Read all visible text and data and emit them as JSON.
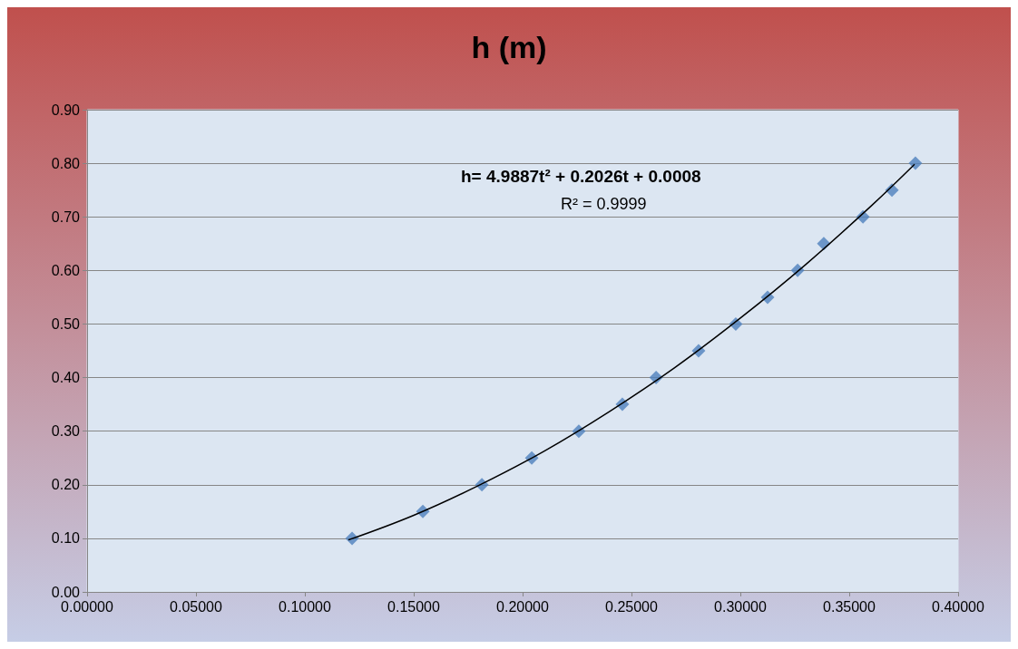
{
  "chart_data": {
    "type": "scatter",
    "title": "h (m)",
    "series": [
      {
        "type": "scatter",
        "color": "#4f81bd",
        "marker": "diamond",
        "x": [
          0.1217,
          0.1542,
          0.1813,
          0.2042,
          0.2258,
          0.2458,
          0.2613,
          0.2808,
          0.2979,
          0.3125,
          0.3263,
          0.3383,
          0.3563,
          0.3696,
          0.3804
        ],
        "values": [
          0.1,
          0.15,
          0.2,
          0.25,
          0.3,
          0.35,
          0.4,
          0.45,
          0.5,
          0.55,
          0.6,
          0.65,
          0.7,
          0.75,
          0.8
        ]
      },
      {
        "type": "line",
        "color": "#000000",
        "marker": "none",
        "x": [
          0.12,
          0.15,
          0.18,
          0.21,
          0.24,
          0.27,
          0.3,
          0.33,
          0.36,
          0.38
        ],
        "values": [
          0.097,
          0.143,
          0.199,
          0.263,
          0.337,
          0.419,
          0.511,
          0.611,
          0.72,
          0.798
        ]
      }
    ],
    "annotations": [
      "h= 4.9887t² + 0.2026t + 0.0008",
      "R² = 0.9999"
    ],
    "xlim": [
      0,
      0.4
    ],
    "xticks": [
      {
        "value": 0,
        "label": "0.00000"
      },
      {
        "value": 0.05,
        "label": "0.05000"
      },
      {
        "value": 0.1,
        "label": "0.10000"
      },
      {
        "value": 0.15,
        "label": "0.15000"
      },
      {
        "value": 0.2,
        "label": "0.20000"
      },
      {
        "value": 0.25,
        "label": "0.25000"
      },
      {
        "value": 0.3,
        "label": "0.30000"
      },
      {
        "value": 0.35,
        "label": "0.35000"
      },
      {
        "value": 0.4,
        "label": "0.40000"
      }
    ],
    "ylim": [
      0,
      0.9
    ],
    "yticks": [
      {
        "value": 0,
        "label": "0.00"
      },
      {
        "value": 0.1,
        "label": "0.10"
      },
      {
        "value": 0.2,
        "label": "0.20"
      },
      {
        "value": 0.3,
        "label": "0.30"
      },
      {
        "value": 0.4,
        "label": "0.40"
      },
      {
        "value": 0.5,
        "label": "0.50"
      },
      {
        "value": 0.6,
        "label": "0.60"
      },
      {
        "value": 0.7,
        "label": "0.70"
      },
      {
        "value": 0.8,
        "label": "0.80"
      },
      {
        "value": 0.9,
        "label": "0.90"
      }
    ],
    "grid": "y"
  }
}
